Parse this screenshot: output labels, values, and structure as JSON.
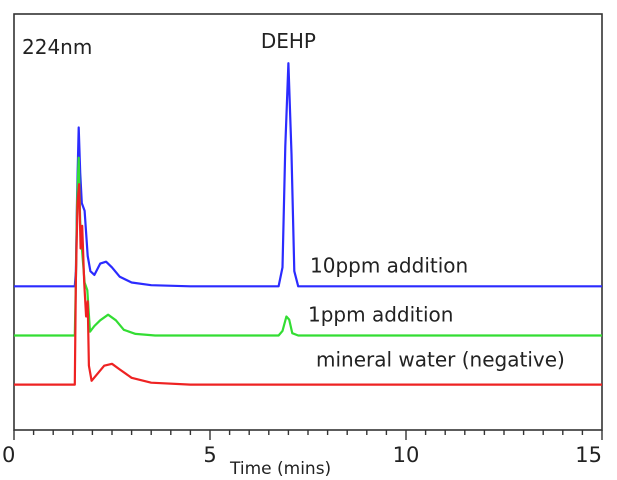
{
  "chart_data": {
    "type": "line",
    "wavelength_label": "224nm",
    "xlabel": "Time (mins)",
    "ylabel": "",
    "xlim": [
      0,
      15
    ],
    "ylim": [
      0,
      1.1
    ],
    "xticks": [
      0,
      5,
      10,
      15
    ],
    "grid": false,
    "legend": "none",
    "annotations": [
      {
        "text": "DEHP",
        "x": 7.0,
        "y": 1.0
      }
    ],
    "series": [
      {
        "name": "10ppm addition",
        "color": "#2b2bff",
        "points": [
          [
            0.0,
            0.38
          ],
          [
            1.55,
            0.38
          ],
          [
            1.58,
            0.42
          ],
          [
            1.61,
            0.62
          ],
          [
            1.65,
            0.8
          ],
          [
            1.69,
            0.68
          ],
          [
            1.73,
            0.6
          ],
          [
            1.8,
            0.58
          ],
          [
            1.88,
            0.46
          ],
          [
            1.95,
            0.42
          ],
          [
            2.05,
            0.41
          ],
          [
            2.2,
            0.44
          ],
          [
            2.35,
            0.445
          ],
          [
            2.5,
            0.43
          ],
          [
            2.7,
            0.405
          ],
          [
            3.0,
            0.39
          ],
          [
            3.5,
            0.383
          ],
          [
            4.5,
            0.38
          ],
          [
            6.75,
            0.38
          ],
          [
            6.85,
            0.43
          ],
          [
            6.92,
            0.75
          ],
          [
            7.0,
            0.97
          ],
          [
            7.08,
            0.73
          ],
          [
            7.15,
            0.42
          ],
          [
            7.25,
            0.38
          ],
          [
            15.0,
            0.38
          ]
        ]
      },
      {
        "name": "1ppm addition",
        "color": "#33dd33",
        "points": [
          [
            0.0,
            0.25
          ],
          [
            1.55,
            0.25
          ],
          [
            1.58,
            0.4
          ],
          [
            1.61,
            0.6
          ],
          [
            1.65,
            0.72
          ],
          [
            1.69,
            0.55
          ],
          [
            1.74,
            0.47
          ],
          [
            1.8,
            0.39
          ],
          [
            1.87,
            0.37
          ],
          [
            1.94,
            0.26
          ],
          [
            2.05,
            0.275
          ],
          [
            2.2,
            0.29
          ],
          [
            2.4,
            0.305
          ],
          [
            2.6,
            0.29
          ],
          [
            2.8,
            0.265
          ],
          [
            3.1,
            0.254
          ],
          [
            3.6,
            0.25
          ],
          [
            6.75,
            0.25
          ],
          [
            6.85,
            0.262
          ],
          [
            6.95,
            0.3
          ],
          [
            7.02,
            0.292
          ],
          [
            7.1,
            0.256
          ],
          [
            7.25,
            0.25
          ],
          [
            15.0,
            0.25
          ]
        ]
      },
      {
        "name": "mineral water (negative)",
        "color": "#ee2222",
        "points": [
          [
            0.0,
            0.12
          ],
          [
            1.55,
            0.12
          ],
          [
            1.58,
            0.4
          ],
          [
            1.62,
            0.6
          ],
          [
            1.66,
            0.65
          ],
          [
            1.7,
            0.48
          ],
          [
            1.74,
            0.54
          ],
          [
            1.79,
            0.39
          ],
          [
            1.84,
            0.3
          ],
          [
            1.88,
            0.34
          ],
          [
            1.91,
            0.17
          ],
          [
            1.98,
            0.13
          ],
          [
            2.1,
            0.145
          ],
          [
            2.3,
            0.17
          ],
          [
            2.5,
            0.175
          ],
          [
            2.7,
            0.16
          ],
          [
            3.0,
            0.138
          ],
          [
            3.5,
            0.125
          ],
          [
            4.5,
            0.12
          ],
          [
            15.0,
            0.12
          ]
        ]
      }
    ]
  }
}
